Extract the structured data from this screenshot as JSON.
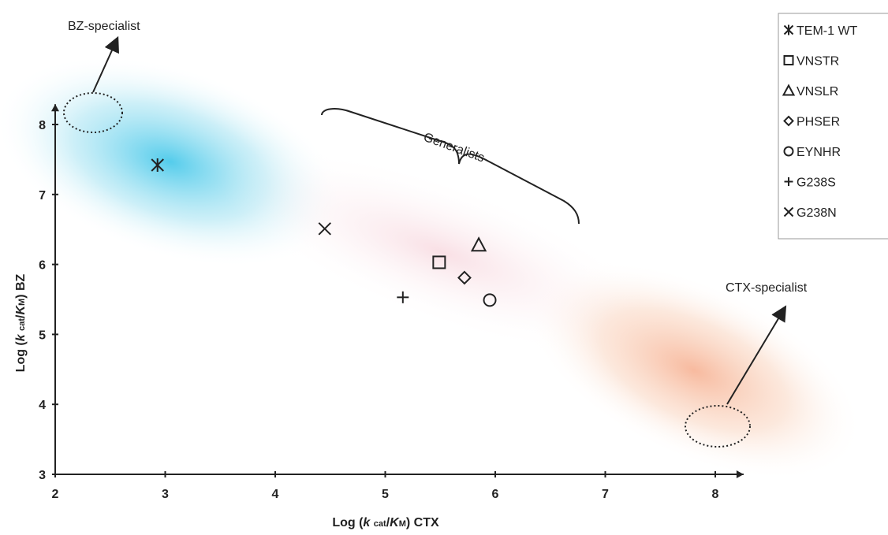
{
  "chart_data": {
    "type": "scatter",
    "xlabel": "Log (k cat/K M) CTX",
    "ylabel": "Log (k cat/K M) BZ",
    "xlim": [
      2,
      8.2
    ],
    "ylim": [
      3,
      8.2
    ],
    "x_ticks": [
      2,
      3,
      4,
      5,
      6,
      7,
      8
    ],
    "y_ticks": [
      3,
      4,
      5,
      6,
      7,
      8
    ],
    "grid": false,
    "legend_position": "top-right",
    "series": [
      {
        "name": "TEM-1 WT",
        "marker": "asterisk",
        "x": 2.93,
        "y": 7.42
      },
      {
        "name": "VNSTR",
        "marker": "square",
        "x": 5.49,
        "y": 6.03
      },
      {
        "name": "VNSLR",
        "marker": "triangle",
        "x": 5.85,
        "y": 6.28
      },
      {
        "name": "PHSER",
        "marker": "diamond",
        "x": 5.72,
        "y": 5.81
      },
      {
        "name": "EYNHR",
        "marker": "circle",
        "x": 5.95,
        "y": 5.49
      },
      {
        "name": "G238S",
        "marker": "plus",
        "x": 5.16,
        "y": 5.53
      },
      {
        "name": "G238N",
        "marker": "cross",
        "x": 4.45,
        "y": 6.51
      }
    ],
    "annotations": {
      "bz_specialist": "BZ-specialist",
      "generalists": "Generalists",
      "ctx_specialist": "CTX-specialist"
    },
    "colors": {
      "bz_glow": "#3cc6e6",
      "ctx_glow": "#f3a88e",
      "ink": "#222222"
    }
  }
}
